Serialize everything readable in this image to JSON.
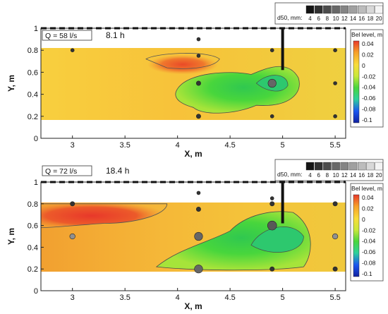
{
  "chart_data": [
    {
      "type": "heatmap",
      "title": "",
      "xlabel": "X, m",
      "ylabel": "Y, m",
      "xlim": [
        2.7,
        5.6
      ],
      "ylim": [
        0,
        1
      ],
      "xticks": [
        "3",
        "3.5",
        "4",
        "4.5",
        "5",
        "5.5"
      ],
      "yticks": [
        "0",
        "0.2",
        "0.4",
        "0.6",
        "0.8",
        "1"
      ],
      "annotations": {
        "discharge": "Q = 58 l/s",
        "time": "8.1 h"
      },
      "colorbar": {
        "title": "Bel level, m",
        "ticks": [
          "0.04",
          "0.02",
          "0",
          "-0.02",
          "-0.04",
          "-0.06",
          "-0.08",
          "-0.1"
        ],
        "range": [
          -0.1,
          0.04
        ]
      },
      "size_legend": {
        "title": "d50, mm:",
        "values": [
          "4",
          "6",
          "8",
          "10",
          "12",
          "14",
          "16",
          "18",
          "20"
        ]
      },
      "colors": {
        "red": "#e8382a",
        "orange": "#f7a028",
        "yellow": "#f8dc3a",
        "green": "#48d63c",
        "blue": "#1a55f0",
        "dark_blue": "#1020a0"
      },
      "sampling_points": [
        {
          "x": 3.0,
          "y": 0.8,
          "d50": 4
        },
        {
          "x": 4.2,
          "y": 0.9,
          "d50": 4
        },
        {
          "x": 4.2,
          "y": 0.75,
          "d50": 4
        },
        {
          "x": 4.2,
          "y": 0.5,
          "d50": 6
        },
        {
          "x": 4.2,
          "y": 0.2,
          "d50": 6
        },
        {
          "x": 4.9,
          "y": 0.8,
          "d50": 4
        },
        {
          "x": 4.9,
          "y": 0.5,
          "d50": 14
        },
        {
          "x": 4.9,
          "y": 0.2,
          "d50": 4
        },
        {
          "x": 5.5,
          "y": 0.8,
          "d50": 4
        },
        {
          "x": 5.5,
          "y": 0.5,
          "d50": 4
        },
        {
          "x": 5.5,
          "y": 0.2,
          "d50": 4
        }
      ]
    },
    {
      "type": "heatmap",
      "title": "",
      "xlabel": "X, m",
      "ylabel": "Y, m",
      "xlim": [
        2.7,
        5.6
      ],
      "ylim": [
        0,
        1
      ],
      "xticks": [
        "3",
        "3.5",
        "4",
        "4.5",
        "5",
        "5.5"
      ],
      "yticks": [
        "0",
        "0.2",
        "0.4",
        "0.6",
        "0.8",
        "1"
      ],
      "annotations": {
        "discharge": "Q = 72 l/s",
        "time": "18.4 h"
      },
      "colorbar": {
        "title": "Bel level, m",
        "ticks": [
          "0.04",
          "0.02",
          "0",
          "-0.02",
          "-0.04",
          "-0.06",
          "-0.08",
          "-0.1"
        ],
        "range": [
          -0.1,
          0.04
        ]
      },
      "size_legend": {
        "title": "d50, mm:",
        "values": [
          "4",
          "6",
          "8",
          "10",
          "12",
          "14",
          "16",
          "18",
          "20"
        ]
      },
      "sampling_points": [
        {
          "x": 3.0,
          "y": 0.8,
          "d50": 6
        },
        {
          "x": 3.0,
          "y": 0.5,
          "d50": 8
        },
        {
          "x": 4.2,
          "y": 0.9,
          "d50": 4
        },
        {
          "x": 4.2,
          "y": 0.75,
          "d50": 6
        },
        {
          "x": 4.2,
          "y": 0.5,
          "d50": 14
        },
        {
          "x": 4.2,
          "y": 0.2,
          "d50": 14
        },
        {
          "x": 4.9,
          "y": 0.85,
          "d50": 4
        },
        {
          "x": 4.9,
          "y": 0.8,
          "d50": 6
        },
        {
          "x": 4.9,
          "y": 0.6,
          "d50": 16
        },
        {
          "x": 4.9,
          "y": 0.2,
          "d50": 6
        },
        {
          "x": 5.5,
          "y": 0.8,
          "d50": 6
        },
        {
          "x": 5.5,
          "y": 0.5,
          "d50": 8
        },
        {
          "x": 5.5,
          "y": 0.2,
          "d50": 6
        }
      ]
    }
  ]
}
